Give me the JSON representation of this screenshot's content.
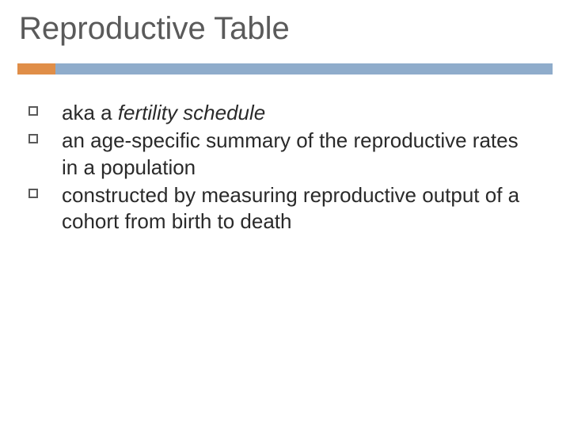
{
  "title": {
    "text": "Reproductive Table",
    "fontsize": 40,
    "color": "#5a5a5a"
  },
  "divider": {
    "accent_color": "#e08e48",
    "accent_width": 48,
    "main_color": "#8faccb"
  },
  "bullet": {
    "border_color": "#5a5a5a",
    "size": 12
  },
  "body": {
    "fontsize": 26,
    "color": "#2a2a2a",
    "line_height": 1.28
  },
  "bullets": [
    {
      "prefix": "aka a ",
      "italic": "fertility schedule",
      "suffix": ""
    },
    {
      "prefix": "an age-specific summary of the reproductive rates in a population",
      "italic": "",
      "suffix": ""
    },
    {
      "prefix": "constructed by measuring reproductive output of a cohort from birth to death",
      "italic": "",
      "suffix": ""
    }
  ]
}
